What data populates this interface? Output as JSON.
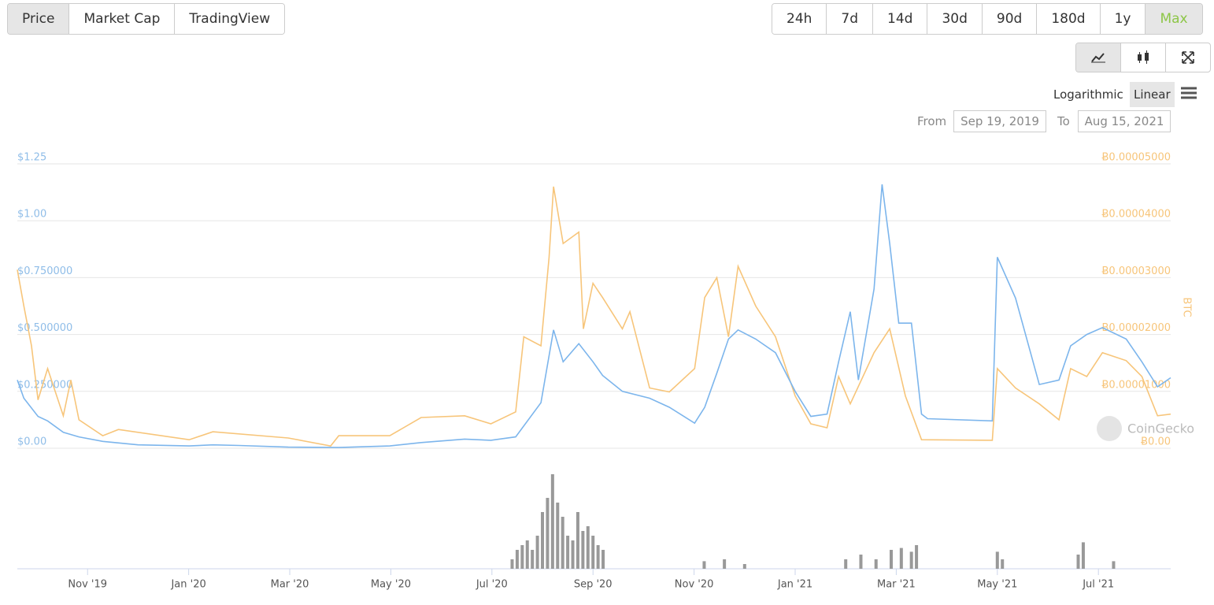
{
  "tabs": [
    "Price",
    "Market Cap",
    "TradingView"
  ],
  "ranges": [
    "24h",
    "7d",
    "14d",
    "30d",
    "90d",
    "180d",
    "1y",
    "Max"
  ],
  "scale_options": [
    "Logarithmic",
    "Linear"
  ],
  "from_label": "From",
  "from_date": "Sep 19, 2019",
  "to_label": "To",
  "to_date": "Aug 15, 2021",
  "watermark": "CoinGecko",
  "chart_data": [
    {
      "type": "line",
      "y2_label": "BTC",
      "xlim": [
        0.61,
        23.43
      ],
      "xticks": [
        {
          "value": 2,
          "label": "Nov '19"
        },
        {
          "value": 4,
          "label": "Jan '20"
        },
        {
          "value": 6,
          "label": "Mar '20"
        },
        {
          "value": 8,
          "label": "May '20"
        },
        {
          "value": 10,
          "label": "Jul '20"
        },
        {
          "value": 12,
          "label": "Sep '20"
        },
        {
          "value": 14,
          "label": "Nov '20"
        },
        {
          "value": 16,
          "label": "Jan '21"
        },
        {
          "value": 18,
          "label": "Mar '21"
        },
        {
          "value": 20,
          "label": "May '21"
        },
        {
          "value": 22,
          "label": "Jul '21"
        }
      ],
      "ylim": [
        0,
        1.25
      ],
      "yticks": [
        {
          "value": 0,
          "label": "$0.00"
        },
        {
          "value": 0.25,
          "label": "$0.250000"
        },
        {
          "value": 0.5,
          "label": "$0.500000"
        },
        {
          "value": 0.75,
          "label": "$0.750000"
        },
        {
          "value": 1,
          "label": "$1.00"
        },
        {
          "value": 1.25,
          "label": "$1.25"
        }
      ],
      "y2lim": [
        0,
        5e-05
      ],
      "y2ticks": [
        {
          "value": 0,
          "label": "Ƀ0.00"
        },
        {
          "value": 1e-05,
          "label": "Ƀ0.00001000"
        },
        {
          "value": 2e-05,
          "label": "Ƀ0.00002000"
        },
        {
          "value": 3e-05,
          "label": "Ƀ0.00003000"
        },
        {
          "value": 4e-05,
          "label": "Ƀ0.00004000"
        },
        {
          "value": 5e-05,
          "label": "Ƀ0.00005000"
        }
      ],
      "grid": true,
      "series": [
        {
          "color": "#f7c57a",
          "axis": "y2",
          "x": [
            0.61,
            0.74,
            0.89,
            1.02,
            1.21,
            1.52,
            1.67,
            1.83,
            2.3,
            2.61,
            4.01,
            4.48,
            5.97,
            6.81,
            6.97,
            7.98,
            8.6,
            9.46,
            9.98,
            10.47,
            10.63,
            10.97,
            11.13,
            11.22,
            11.41,
            11.72,
            11.81,
            12.0,
            12.19,
            12.58,
            12.73,
            13.12,
            13.51,
            14.01,
            14.21,
            14.45,
            14.68,
            14.87,
            15.22,
            15.61,
            16.0,
            16.31,
            16.63,
            16.86,
            17.09,
            17.56,
            17.87,
            18.18,
            18.5,
            19.9,
            20.0,
            20.36,
            20.83,
            21.22,
            21.45,
            21.77,
            22.08,
            22.55,
            22.86,
            23.17,
            23.43
          ],
          "values": [
            3.14e-05,
            2.5e-05,
            1.8e-05,
            8.5e-06,
            1.4e-05,
            5.7e-06,
            1.2e-05,
            5e-06,
            2.2e-06,
            3.3e-06,
            1.5e-06,
            2.9e-06,
            1.8e-06,
            4e-07,
            2.2e-06,
            2.2e-06,
            5.4e-06,
            5.7e-06,
            4.3e-06,
            6.4e-06,
            1.96e-05,
            1.8e-05,
            3.35e-05,
            4.6e-05,
            3.6e-05,
            3.8e-05,
            2.1e-05,
            2.9e-05,
            2.65e-05,
            2.1e-05,
            2.4e-05,
            1.06e-05,
            9.9e-06,
            1.4e-05,
            2.65e-05,
            3e-05,
            1.96e-05,
            3.2e-05,
            2.5e-05,
            1.96e-05,
            9.2e-06,
            4.3e-06,
            3.6e-06,
            1.26e-05,
            7.8e-06,
            1.68e-05,
            2.1e-05,
            9.2e-06,
            1.5e-06,
            1.4e-06,
            1.4e-05,
            1.06e-05,
            7.8e-06,
            5e-06,
            1.4e-05,
            1.26e-05,
            1.68e-05,
            1.54e-05,
            1.26e-05,
            5.7e-06,
            6e-06
          ]
        },
        {
          "color": "#7cb5ec",
          "x": [
            0.61,
            0.74,
            1.02,
            1.21,
            1.52,
            1.83,
            2.3,
            3.0,
            4.01,
            4.48,
            5.0,
            5.97,
            6.97,
            7.98,
            8.6,
            9.46,
            9.98,
            10.47,
            10.97,
            11.22,
            11.41,
            11.72,
            12.0,
            12.19,
            12.58,
            13.12,
            13.51,
            14.01,
            14.21,
            14.45,
            14.68,
            14.87,
            15.22,
            15.61,
            16.0,
            16.31,
            16.63,
            16.86,
            17.09,
            17.25,
            17.56,
            17.72,
            17.87,
            18.05,
            18.3,
            18.5,
            18.62,
            19.9,
            20.0,
            20.36,
            20.83,
            21.22,
            21.45,
            21.77,
            22.08,
            22.55,
            22.86,
            23.17,
            23.43
          ],
          "values": [
            0.3,
            0.22,
            0.14,
            0.12,
            0.07,
            0.05,
            0.03,
            0.015,
            0.01,
            0.015,
            0.012,
            0.005,
            0.003,
            0.01,
            0.025,
            0.04,
            0.035,
            0.05,
            0.2,
            0.52,
            0.38,
            0.46,
            0.38,
            0.32,
            0.25,
            0.22,
            0.18,
            0.11,
            0.18,
            0.33,
            0.48,
            0.52,
            0.48,
            0.42,
            0.25,
            0.14,
            0.15,
            0.38,
            0.6,
            0.3,
            0.7,
            1.16,
            0.9,
            0.55,
            0.55,
            0.15,
            0.13,
            0.12,
            0.84,
            0.66,
            0.28,
            0.3,
            0.45,
            0.5,
            0.53,
            0.48,
            0.38,
            0.27,
            0.31
          ]
        }
      ]
    },
    {
      "type": "volume",
      "x": [
        10.4,
        10.5,
        10.6,
        10.7,
        10.8,
        10.9,
        11.0,
        11.1,
        11.2,
        11.3,
        11.4,
        11.5,
        11.6,
        11.7,
        11.8,
        11.9,
        12.0,
        12.1,
        12.2,
        14.2,
        14.6,
        15.0,
        17.0,
        17.3,
        17.6,
        17.9,
        18.1,
        18.3,
        18.4,
        20.0,
        20.1,
        21.6,
        21.7,
        22.3
      ],
      "values": [
        10,
        20,
        25,
        30,
        20,
        35,
        60,
        75,
        100,
        70,
        55,
        35,
        30,
        60,
        40,
        45,
        35,
        25,
        20,
        8,
        10,
        5,
        10,
        15,
        10,
        20,
        22,
        18,
        25,
        18,
        10,
        15,
        28,
        8
      ],
      "color": "#999999"
    }
  ]
}
